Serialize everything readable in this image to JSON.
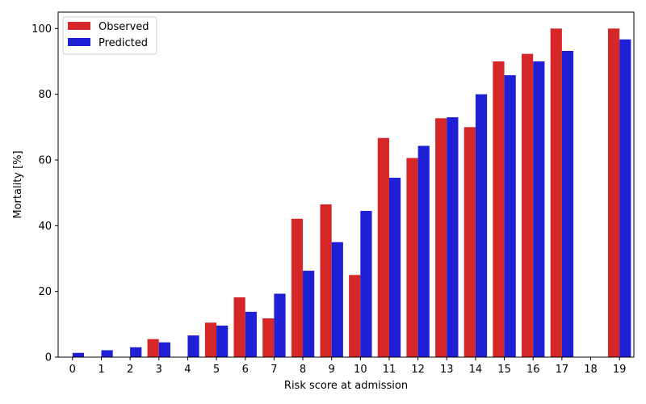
{
  "chart_data": {
    "type": "bar",
    "xlabel": "Risk score at admission",
    "ylabel": "Mortality [%]",
    "ylim": [
      0,
      105
    ],
    "yticks": [
      0,
      20,
      40,
      60,
      80,
      100
    ],
    "categories": [
      "0",
      "1",
      "2",
      "3",
      "4",
      "5",
      "6",
      "7",
      "8",
      "9",
      "10",
      "11",
      "12",
      "13",
      "14",
      "15",
      "16",
      "17",
      "18",
      "19"
    ],
    "series": [
      {
        "name": "Observed",
        "color": "#d62728",
        "values": [
          0,
          0,
          0,
          5.5,
          0,
          10.5,
          18.2,
          11.8,
          42.1,
          46.5,
          25.0,
          66.7,
          60.6,
          72.7,
          70.0,
          90.0,
          92.3,
          100,
          0,
          100
        ]
      },
      {
        "name": "Predicted",
        "color": "#1f1fd6",
        "values": [
          1.3,
          2.1,
          3.0,
          4.5,
          6.6,
          9.6,
          13.8,
          19.3,
          26.3,
          35.0,
          44.5,
          54.6,
          64.3,
          73.0,
          80.0,
          85.8,
          90.0,
          93.2,
          0,
          96.7
        ]
      }
    ],
    "legend_position": "top-left",
    "grid": false
  }
}
